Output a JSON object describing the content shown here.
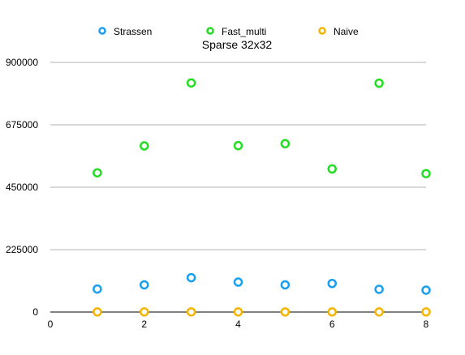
{
  "chart_data": {
    "type": "scatter",
    "title": "Sparse 32x32",
    "xlabel": "",
    "ylabel": "",
    "xlim": [
      0,
      8
    ],
    "ylim": [
      0,
      900000
    ],
    "x_ticks": [
      "0",
      "2",
      "4",
      "6",
      "8"
    ],
    "y_ticks": [
      "0",
      "225000",
      "450000",
      "675000",
      "900000"
    ],
    "grid": true,
    "legend_position": "top",
    "x": [
      1,
      2,
      3,
      4,
      5,
      6,
      7,
      8
    ],
    "series": [
      {
        "name": "Strassen",
        "color": "#1a9ff0",
        "values": [
          83000,
          98000,
          124000,
          108000,
          98000,
          103000,
          82000,
          79000
        ]
      },
      {
        "name": "Fast_multi",
        "color": "#22dd22",
        "values": [
          502000,
          599000,
          826000,
          600000,
          607000,
          516000,
          825000,
          499000
        ]
      },
      {
        "name": "Naive",
        "color": "#f5b400",
        "values": [
          500,
          500,
          500,
          500,
          500,
          500,
          500,
          500
        ]
      }
    ]
  }
}
